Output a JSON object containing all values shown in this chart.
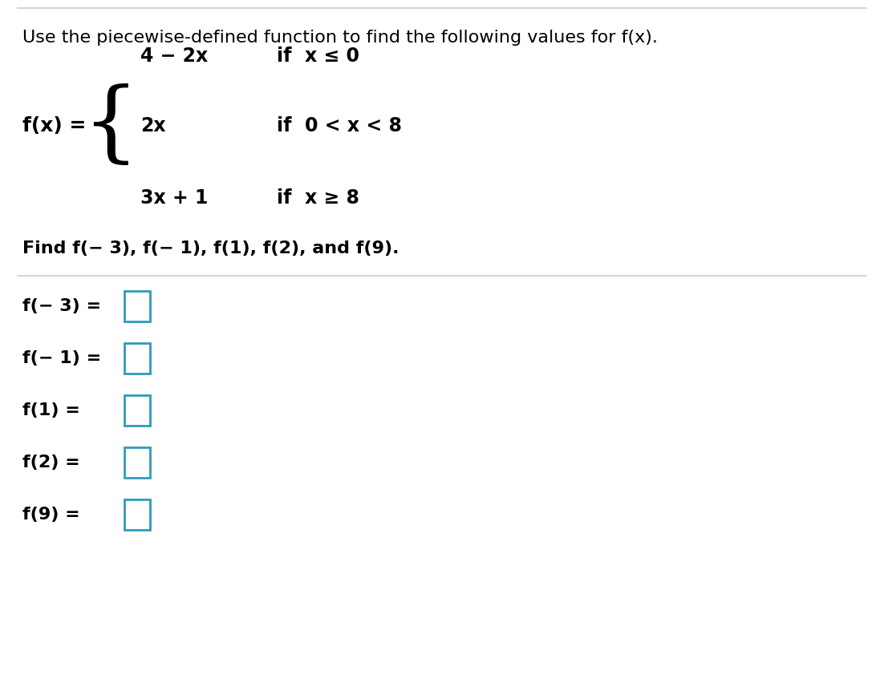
{
  "title": "Use the piecewise-defined function to find the following values for f(x).",
  "piece1_expr": "4 − 2x",
  "piece1_cond": "if  x ≤ 0",
  "piece2_expr": "2x",
  "piece2_cond": "if  0 < x < 8",
  "piece3_expr": "3x + 1",
  "piece3_cond": "if  x ≥ 8",
  "fx_label": "f(x) =",
  "find_text": "Find f(− 3), f(− 1), f(1), f(2), and f(9).",
  "answer_labels": [
    "f(− 3) =",
    "f(− 1) =",
    "f(1) =",
    "f(2) =",
    "f(9) ="
  ],
  "bg_color": "#ffffff",
  "text_color": "#000000",
  "box_color": "#2e9bbf",
  "separator_color": "#cccccc",
  "title_fontsize": 16,
  "body_fontsize": 16,
  "answer_fontsize": 16
}
